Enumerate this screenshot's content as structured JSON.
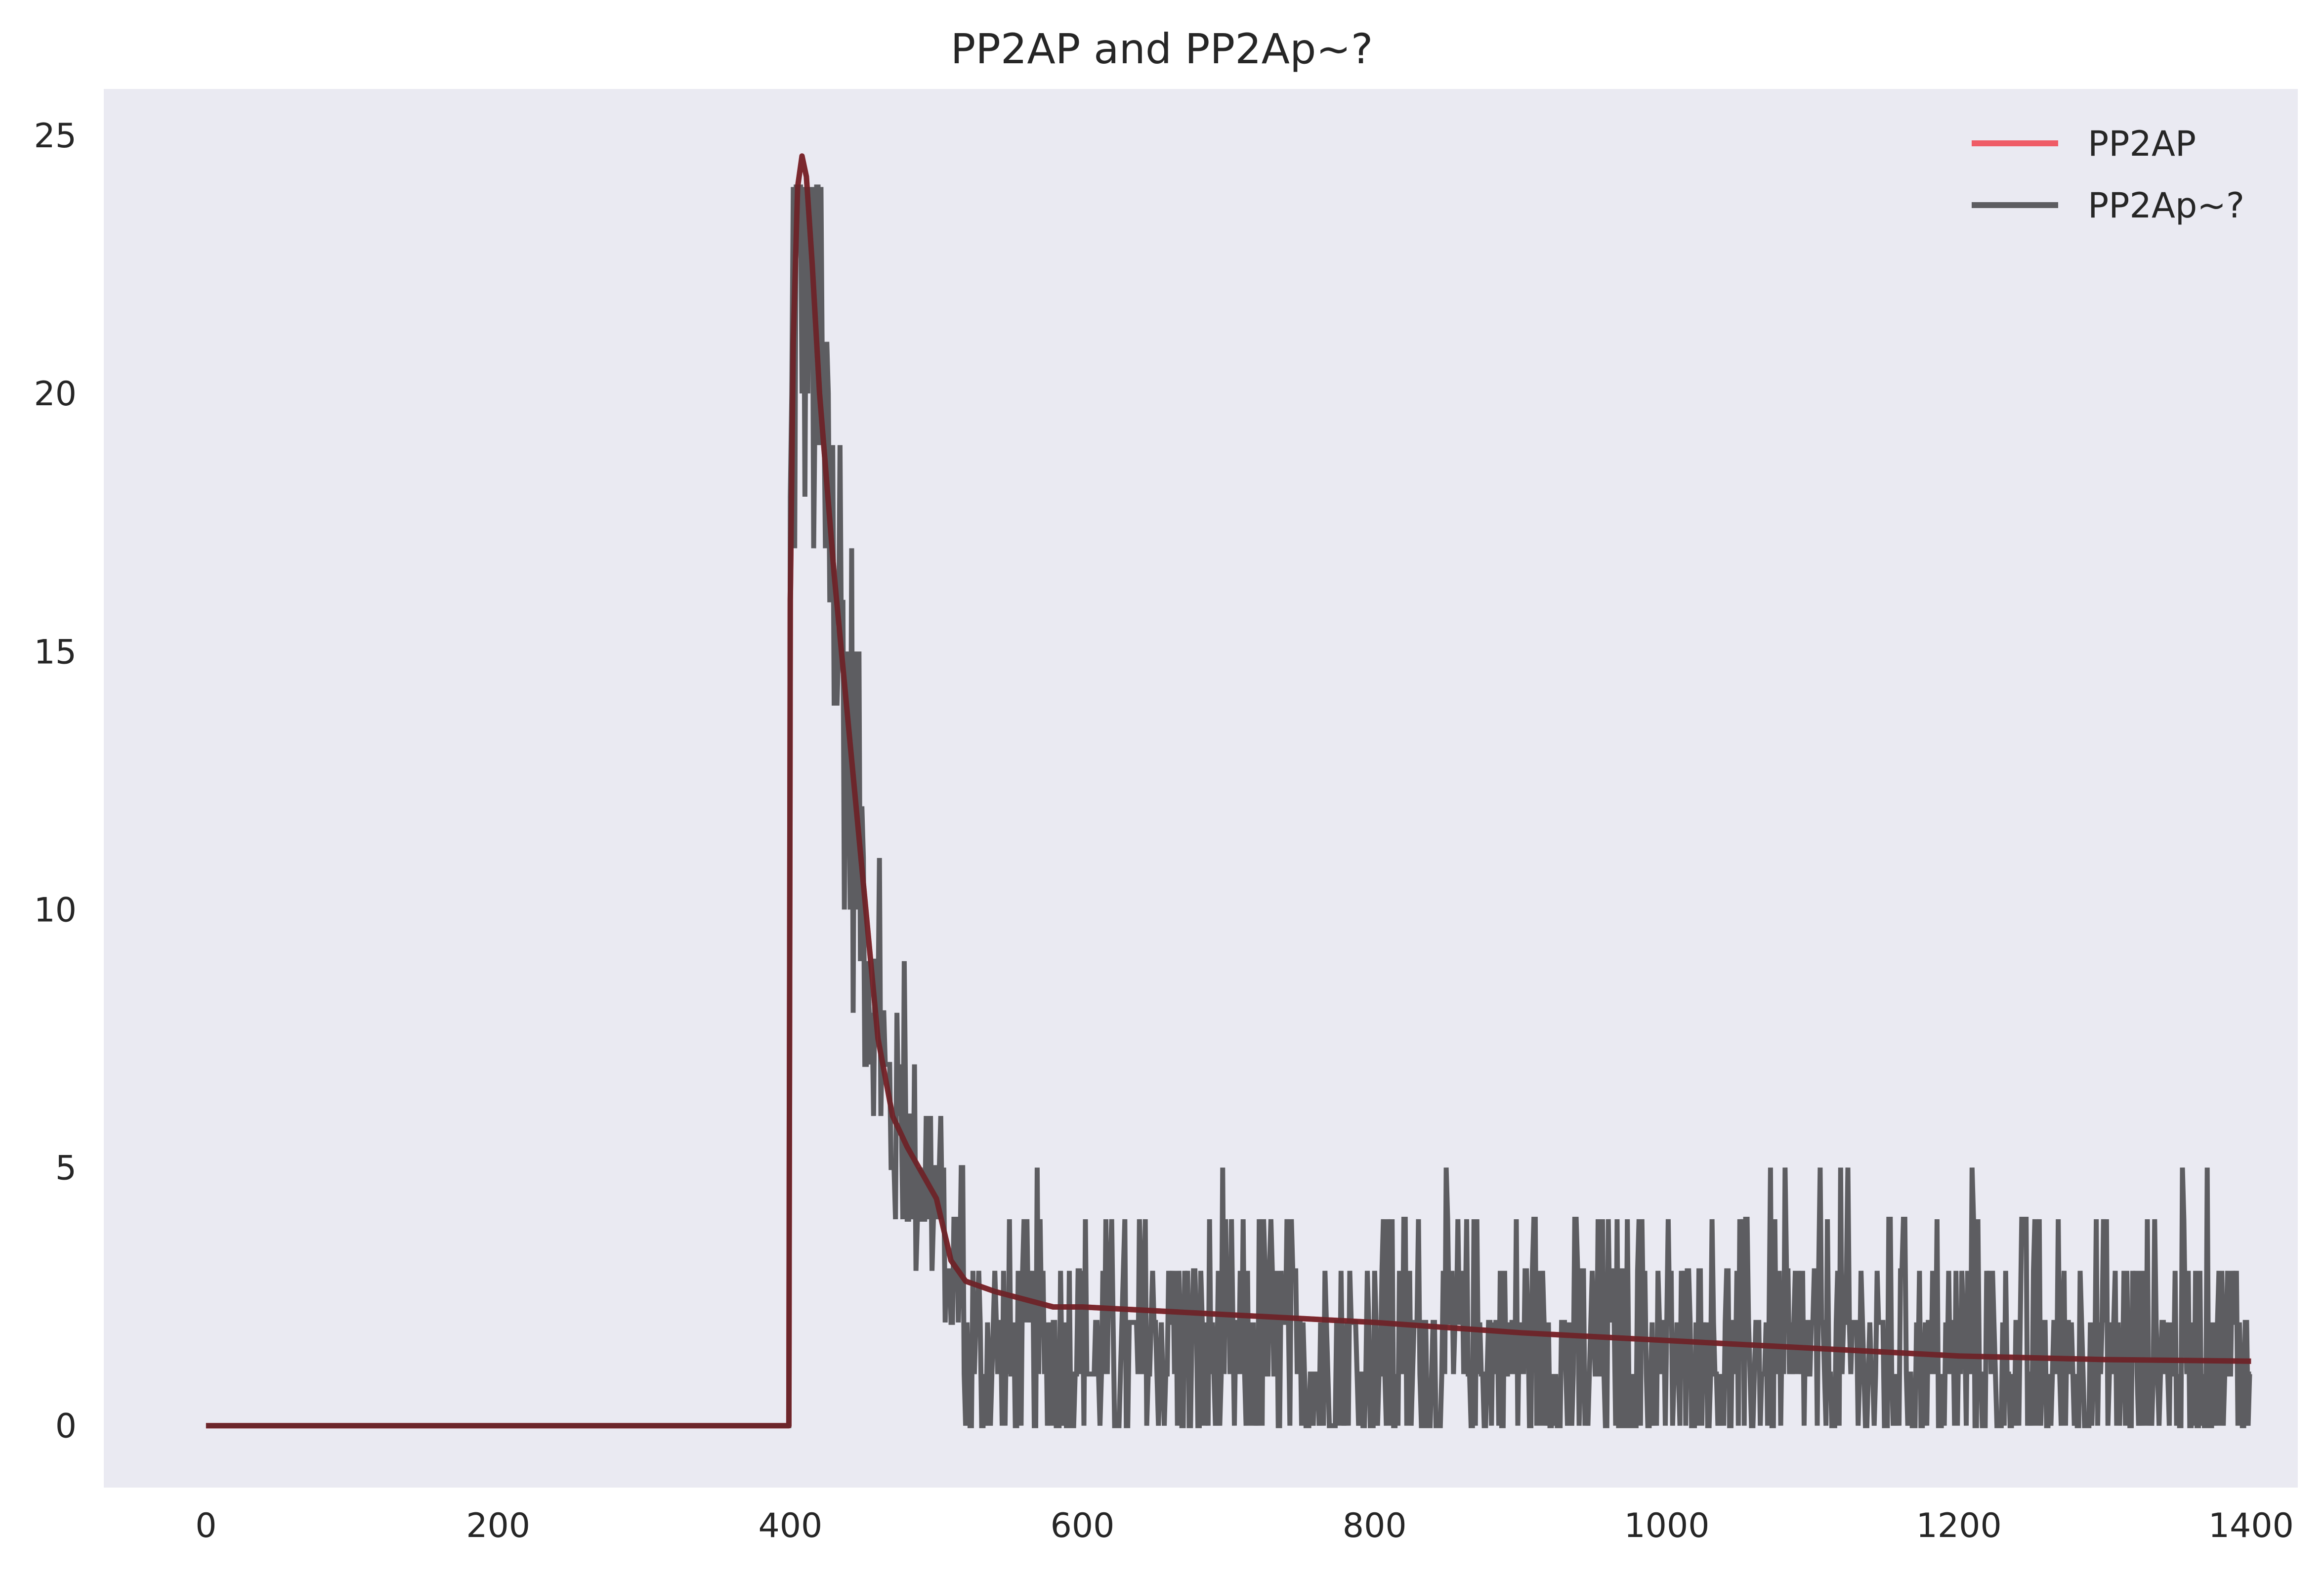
{
  "chart_data": {
    "type": "line",
    "title": "PP2AP and PP2Ap~?",
    "xlabel": "",
    "ylabel": "",
    "xlim": [
      -70,
      1432
    ],
    "ylim": [
      -1.2,
      25.9
    ],
    "xticks": [
      0,
      200,
      400,
      600,
      800,
      1000,
      1200,
      1400
    ],
    "yticks": [
      0,
      5,
      10,
      15,
      20,
      25
    ],
    "grid": false,
    "background": "#eaeaf2",
    "legend_position": "top-right",
    "series": [
      {
        "name": "PP2AP",
        "color": "#f0434f",
        "style": "smooth",
        "points": [
          [
            0,
            0
          ],
          [
            399,
            0
          ],
          [
            400,
            16
          ],
          [
            402,
            21
          ],
          [
            405,
            24
          ],
          [
            408,
            24.6
          ],
          [
            411,
            24.2
          ],
          [
            415,
            22.5
          ],
          [
            420,
            20
          ],
          [
            430,
            16.5
          ],
          [
            440,
            13.5
          ],
          [
            450,
            10.5
          ],
          [
            460,
            7.5
          ],
          [
            470,
            6
          ],
          [
            480,
            5.4
          ],
          [
            490,
            4.9
          ],
          [
            500,
            4.4
          ],
          [
            510,
            3.2
          ],
          [
            520,
            2.8
          ],
          [
            540,
            2.6
          ],
          [
            580,
            2.3
          ],
          [
            600,
            2.3
          ],
          [
            700,
            2.15
          ],
          [
            800,
            2.0
          ],
          [
            900,
            1.8
          ],
          [
            1000,
            1.65
          ],
          [
            1100,
            1.5
          ],
          [
            1200,
            1.35
          ],
          [
            1300,
            1.28
          ],
          [
            1400,
            1.25
          ]
        ]
      },
      {
        "name": "PP2Ap~?",
        "color": "#444448",
        "style": "noisy",
        "points": [
          [
            0,
            0
          ],
          [
            399,
            0
          ],
          [
            400,
            12
          ],
          [
            403,
            18
          ],
          [
            406,
            13
          ],
          [
            408,
            22
          ],
          [
            410,
            16
          ],
          [
            412,
            24
          ],
          [
            414,
            18
          ],
          [
            416,
            21
          ],
          [
            418,
            17
          ],
          [
            420,
            16
          ],
          [
            423,
            20
          ],
          [
            426,
            11
          ],
          [
            428,
            21
          ],
          [
            430,
            17
          ],
          [
            432,
            11
          ],
          [
            435,
            14
          ],
          [
            438,
            16
          ],
          [
            440,
            9
          ],
          [
            442,
            13
          ],
          [
            445,
            8
          ],
          [
            448,
            14
          ],
          [
            450,
            11
          ],
          [
            453,
            18
          ],
          [
            456,
            10
          ],
          [
            460,
            13
          ],
          [
            463,
            8
          ],
          [
            466,
            12
          ],
          [
            470,
            9
          ],
          [
            473,
            13
          ],
          [
            476,
            7
          ],
          [
            480,
            11
          ],
          [
            483,
            6
          ],
          [
            486,
            9
          ],
          [
            490,
            4
          ],
          [
            493,
            7
          ],
          [
            497,
            5
          ],
          [
            500,
            3
          ],
          [
            503,
            6
          ],
          [
            506,
            1
          ],
          [
            510,
            4
          ],
          [
            513,
            2
          ],
          [
            517,
            5
          ],
          [
            520,
            2
          ],
          [
            525,
            0
          ],
          [
            530,
            4
          ],
          [
            535,
            1
          ],
          [
            540,
            3
          ],
          [
            545,
            0
          ],
          [
            550,
            4
          ],
          [
            555,
            2
          ],
          [
            560,
            1
          ],
          [
            565,
            3
          ],
          [
            570,
            0
          ],
          [
            575,
            5
          ],
          [
            580,
            2
          ],
          [
            585,
            0
          ],
          [
            590,
            3
          ],
          [
            595,
            5
          ],
          [
            600,
            1
          ],
          [
            605,
            3
          ],
          [
            610,
            0
          ],
          [
            615,
            2
          ],
          [
            620,
            4
          ],
          [
            625,
            1
          ],
          [
            630,
            3
          ],
          [
            640,
            0
          ],
          [
            645,
            4
          ],
          [
            650,
            2
          ],
          [
            660,
            3
          ],
          [
            670,
            1
          ],
          [
            680,
            4
          ],
          [
            690,
            2
          ],
          [
            700,
            0
          ],
          [
            710,
            3
          ],
          [
            720,
            1
          ],
          [
            730,
            3
          ],
          [
            740,
            0
          ],
          [
            750,
            2
          ],
          [
            760,
            3
          ],
          [
            770,
            0
          ],
          [
            780,
            3
          ],
          [
            790,
            1
          ],
          [
            800,
            2
          ],
          [
            810,
            4
          ],
          [
            820,
            1
          ],
          [
            830,
            3
          ],
          [
            840,
            0
          ],
          [
            850,
            2
          ],
          [
            860,
            3
          ],
          [
            870,
            0
          ],
          [
            880,
            2
          ],
          [
            890,
            1
          ],
          [
            900,
            4
          ],
          [
            905,
            2
          ],
          [
            910,
            5
          ],
          [
            915,
            1
          ],
          [
            920,
            3
          ],
          [
            930,
            0
          ],
          [
            940,
            2
          ],
          [
            950,
            1
          ],
          [
            960,
            3
          ],
          [
            970,
            0
          ],
          [
            980,
            4
          ],
          [
            990,
            1
          ],
          [
            1000,
            3
          ],
          [
            1010,
            0
          ],
          [
            1020,
            2
          ],
          [
            1030,
            1
          ],
          [
            1040,
            3
          ],
          [
            1050,
            0
          ],
          [
            1060,
            2
          ],
          [
            1070,
            3
          ],
          [
            1080,
            0
          ],
          [
            1090,
            2
          ],
          [
            1100,
            4
          ],
          [
            1110,
            1
          ],
          [
            1120,
            3
          ],
          [
            1130,
            0
          ],
          [
            1140,
            2
          ],
          [
            1150,
            1
          ],
          [
            1160,
            3
          ],
          [
            1170,
            0
          ],
          [
            1180,
            2
          ],
          [
            1190,
            1
          ],
          [
            1200,
            3
          ],
          [
            1210,
            5
          ],
          [
            1215,
            1
          ],
          [
            1220,
            2
          ],
          [
            1230,
            0
          ],
          [
            1240,
            2
          ],
          [
            1250,
            3
          ],
          [
            1260,
            0
          ],
          [
            1270,
            2
          ],
          [
            1280,
            1
          ],
          [
            1290,
            3
          ],
          [
            1300,
            0
          ],
          [
            1310,
            2
          ],
          [
            1320,
            3
          ],
          [
            1330,
            0
          ],
          [
            1340,
            2
          ],
          [
            1350,
            3
          ],
          [
            1360,
            0
          ],
          [
            1370,
            2
          ],
          [
            1380,
            1
          ],
          [
            1385,
            4
          ],
          [
            1390,
            0
          ],
          [
            1395,
            3
          ],
          [
            1400,
            0
          ]
        ]
      },
      {
        "name": "",
        "color": "#6e2228",
        "style": "overlap"
      }
    ]
  }
}
